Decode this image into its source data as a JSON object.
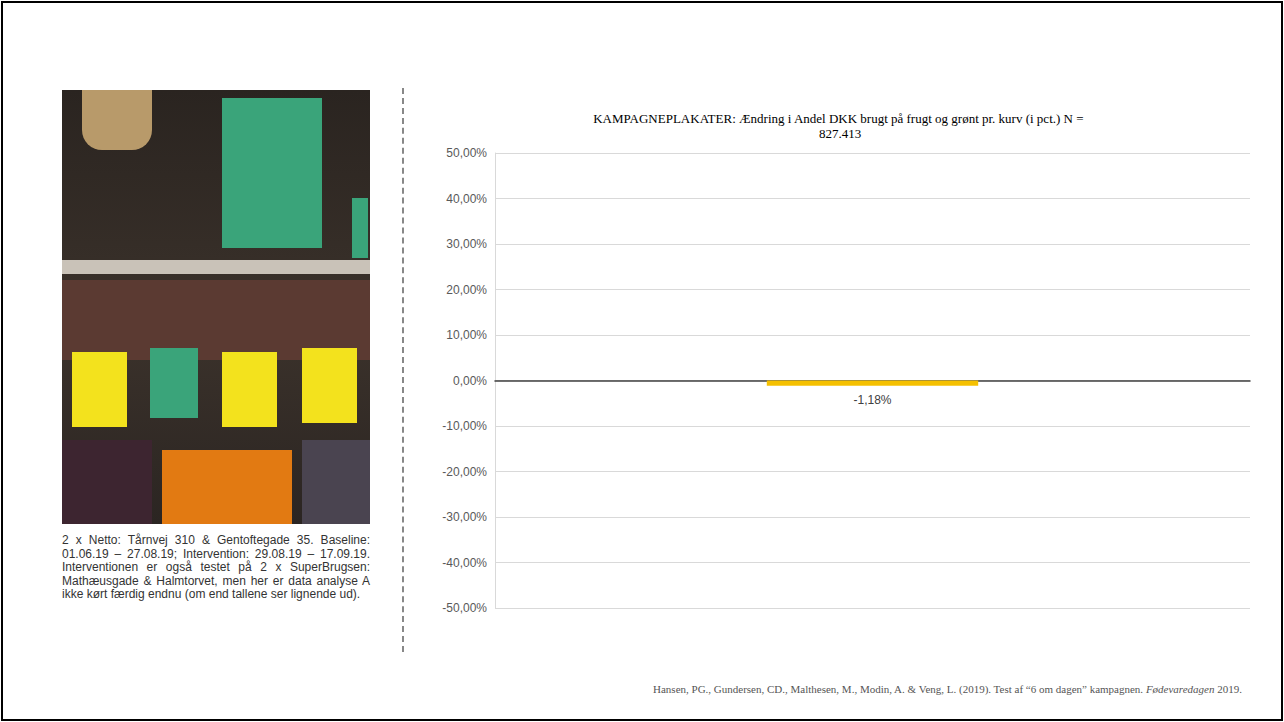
{
  "chart_data": {
    "type": "bar",
    "title": "KAMPAGNEPLAKATER: Ændring i Andel DKK brugt på frugt og grønt pr. kurv (i pct.) N = 827.413",
    "categories": [
      null
    ],
    "values": [
      -1.18
    ],
    "value_labels": [
      "-1,18%"
    ],
    "color": "#f5c000",
    "ylim": [
      -50,
      50
    ],
    "yticks": [
      {
        "value": -50,
        "label": "-50,00%"
      },
      {
        "value": -40,
        "label": "-40,00%"
      },
      {
        "value": -30,
        "label": "-30,00%"
      },
      {
        "value": -20,
        "label": "-20,00%"
      },
      {
        "value": -10,
        "label": "-10,00%"
      },
      {
        "value": 0,
        "label": "0,00%"
      },
      {
        "value": 10,
        "label": "10,00%"
      },
      {
        "value": 20,
        "label": "20,00%"
      },
      {
        "value": 30,
        "label": "30,00%"
      },
      {
        "value": 40,
        "label": "40,00%"
      },
      {
        "value": 50,
        "label": "50,00%"
      }
    ],
    "grid": true,
    "data_labels": true,
    "tick_labels": "y"
  },
  "caption": "2 x Netto: Tårnvej 310 & Gentoftegade 35. Baseline: 01.06.19 – 27.08.19; Intervention: 29.08.19 – 17.09.19. Interventionen er også testet på 2 x SuperBrugsen: Mathæusgade & Halmtorvet, men her er data analyse A ikke kørt færdig endnu (om end tallene ser lignende ud).",
  "source": {
    "text": "Hansen, PG., Gundersen, CD., Malthesen, M., Modin, A. & Veng, L. (2019). Test af “6 om dagen” kampagnen.",
    "journal": "Fødevaredagen",
    "year": "2019."
  }
}
